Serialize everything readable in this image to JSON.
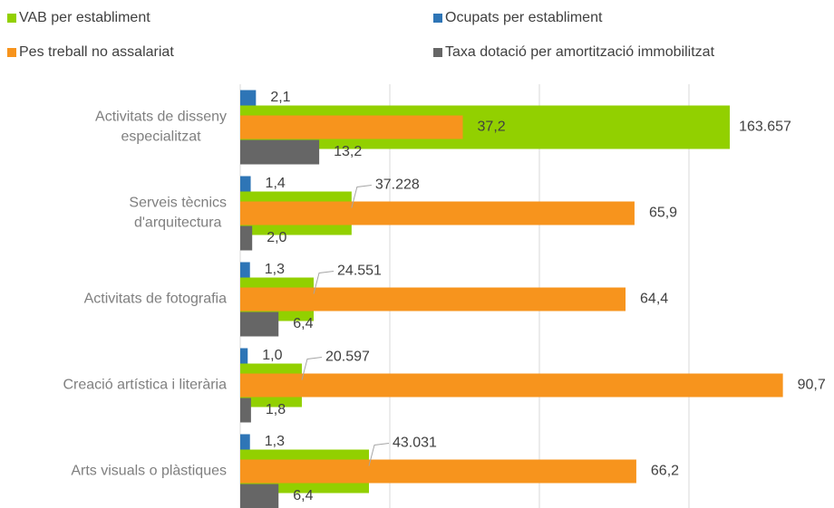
{
  "chart_data": {
    "type": "bar",
    "orientation": "horizontal",
    "categories": [
      [
        "Activitats de disseny",
        "especialitzat"
      ],
      [
        "Serveis tècnics",
        "d'arquitectura"
      ],
      [
        "Activitats de fotografia"
      ],
      [
        "Creació artística i literària"
      ],
      [
        "Arts visuals o plàstiques"
      ]
    ],
    "xlim": [
      0,
      200000
    ],
    "xticks": [
      0,
      50000,
      100000,
      150000
    ],
    "grid": true,
    "series": [
      {
        "name": "Ocupats per establiment",
        "color": "#2e75b6",
        "xlim": [
          0,
          80
        ],
        "values": [
          2.1,
          1.4,
          1.3,
          1.0,
          1.3
        ],
        "value_labels": [
          "2,1",
          "1,4",
          "1,3",
          "1,0",
          "1,3"
        ]
      },
      {
        "name": "VAB per establiment",
        "color": "#92d000",
        "values": [
          163657,
          37228,
          24551,
          20597,
          43031
        ],
        "value_labels": [
          "163.657",
          "37.228",
          "24.551",
          "20.597",
          "43.031"
        ]
      },
      {
        "name": "Pes treball no assalariat",
        "color": "#f7941d",
        "xlim": [
          0,
          100
        ],
        "values": [
          37.2,
          65.9,
          64.4,
          90.7,
          66.2
        ],
        "value_labels": [
          "37,2",
          "65,9",
          "64,4",
          "90,7",
          "66,2"
        ]
      },
      {
        "name": "Taxa dotació per amortització immobilitzat",
        "color": "#666666",
        "xlim": [
          0,
          100
        ],
        "values": [
          13.2,
          2.0,
          6.4,
          1.8,
          6.4
        ],
        "value_labels": [
          "13,2",
          "2,0",
          "6,4",
          "1,8",
          "6,4"
        ]
      }
    ]
  }
}
